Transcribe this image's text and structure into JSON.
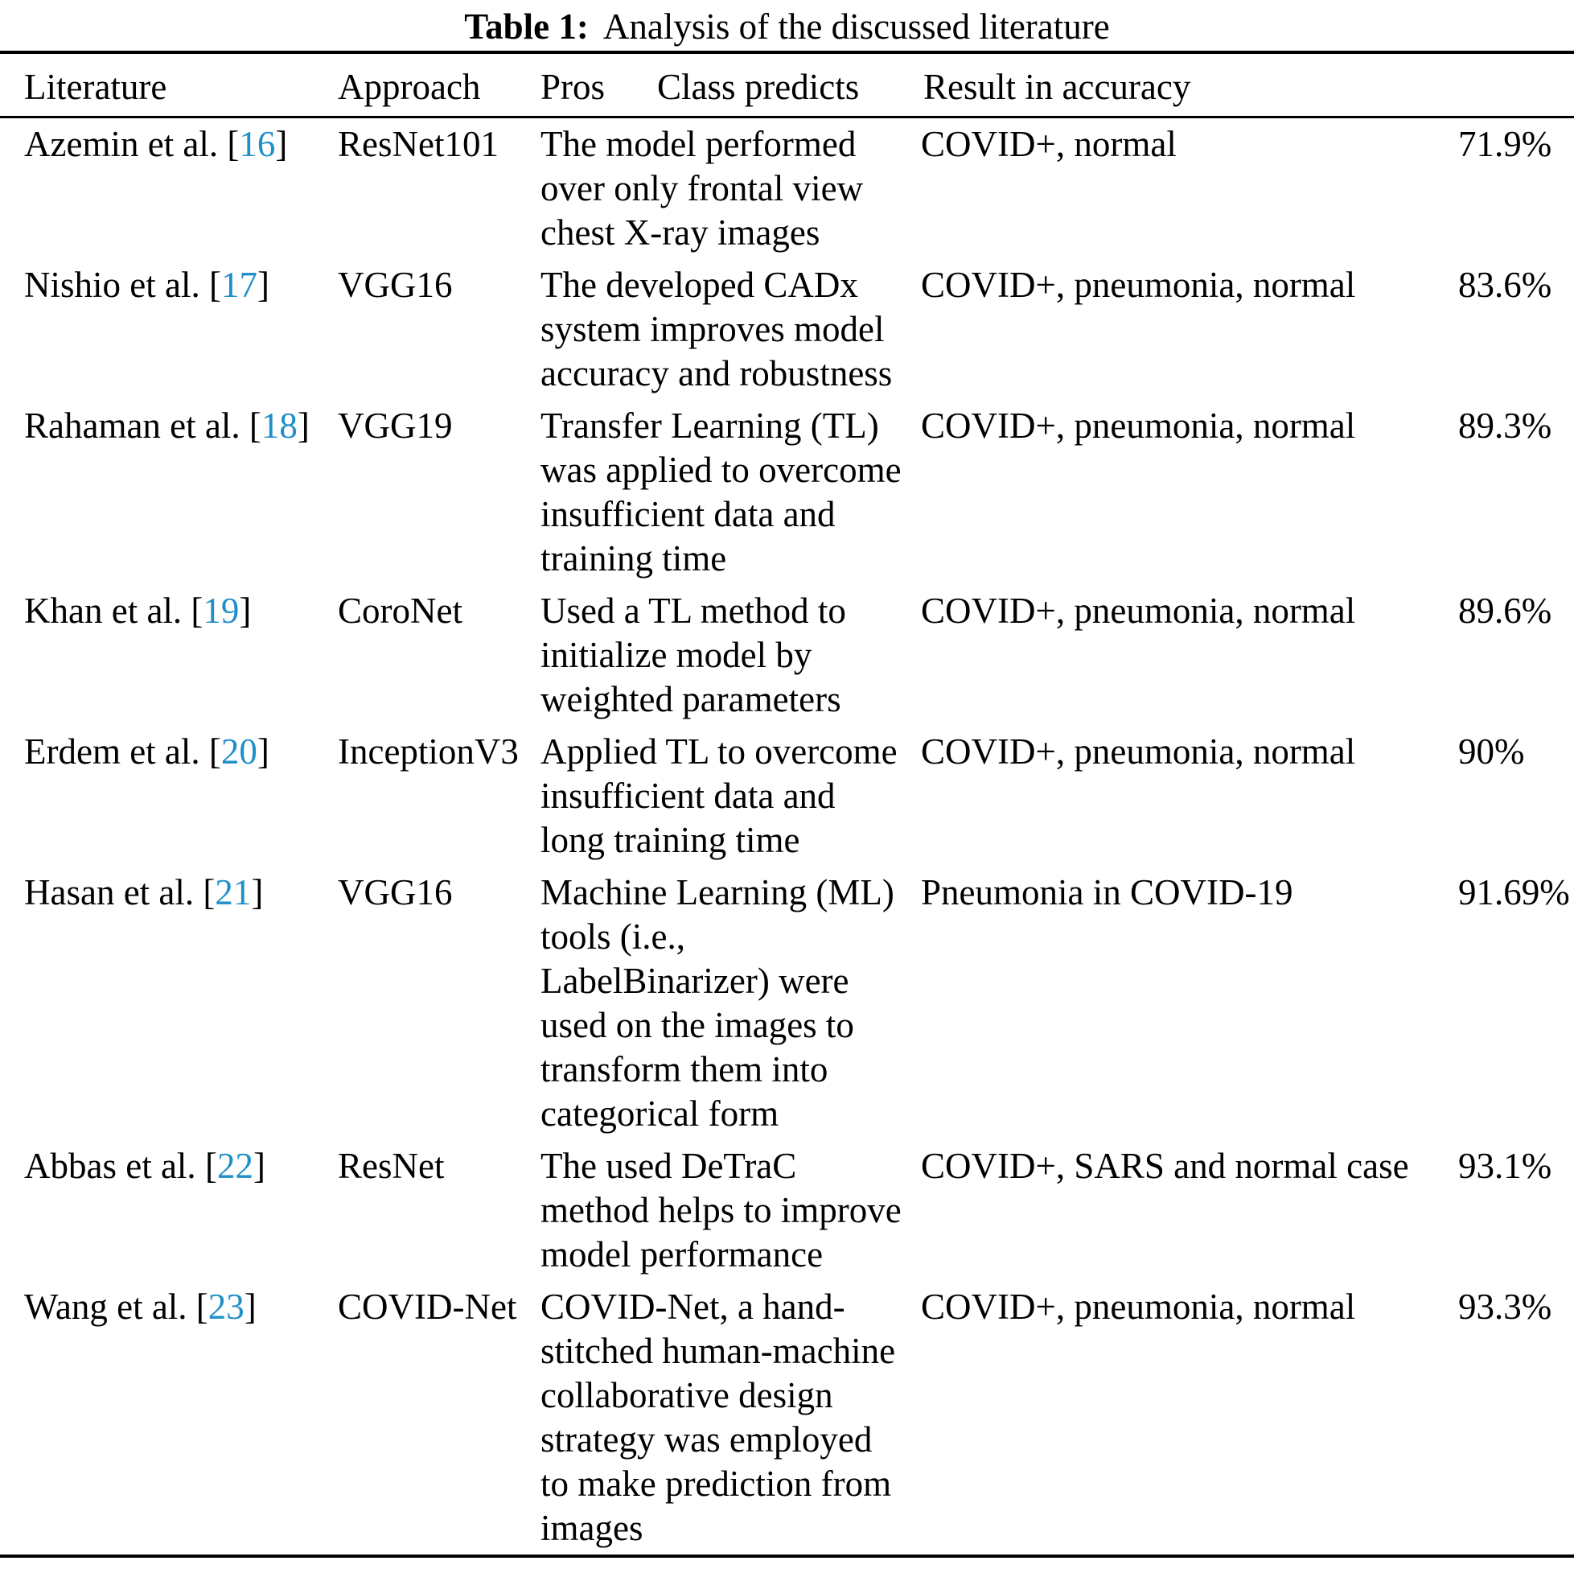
{
  "caption": {
    "label": "Table 1:",
    "text": "Analysis of the discussed literature"
  },
  "colors": {
    "citation_link": "#1e8fc9",
    "text": "#000000",
    "background": "#ffffff"
  },
  "citation_brackets": {
    "open": "[",
    "close": "]"
  },
  "table": {
    "columns": {
      "literature": "Literature",
      "approach": "Approach",
      "pros": "Pros",
      "class_predicts": "Class predicts",
      "result": "Result in accuracy"
    },
    "rows": [
      {
        "literature": "Azemin et al. ",
        "ref": "16",
        "approach": "ResNet101",
        "pros": "The model performed\nover only frontal view\nchest X-ray images",
        "class_predicts": "COVID+, normal",
        "accuracy": "71.9%"
      },
      {
        "literature": "Nishio et al. ",
        "ref": "17",
        "approach": "VGG16",
        "pros": "The developed CADx\nsystem improves model\naccuracy and robustness",
        "class_predicts": "COVID+, pneumonia, normal",
        "accuracy": "83.6%"
      },
      {
        "literature": "Rahaman et al. ",
        "ref": "18",
        "approach": "VGG19",
        "pros": "Transfer Learning (TL)\nwas applied to overcome\ninsufficient data and\ntraining time",
        "class_predicts": "COVID+, pneumonia, normal",
        "accuracy": "89.3%"
      },
      {
        "literature": "Khan et al. ",
        "ref": "19",
        "approach": "CoroNet",
        "pros": "Used a TL method to\ninitialize model by\nweighted parameters",
        "class_predicts": "COVID+, pneumonia, normal",
        "accuracy": "89.6%"
      },
      {
        "literature": "Erdem et al. ",
        "ref": "20",
        "approach": "InceptionV3",
        "pros": "Applied TL to overcome\ninsufficient data and\nlong training time",
        "class_predicts": "COVID+, pneumonia, normal",
        "accuracy": "90%"
      },
      {
        "literature": "Hasan et al. ",
        "ref": "21",
        "approach": "VGG16",
        "pros": "Machine Learning (ML)\ntools (i.e.,\nLabelBinarizer) were\nused on the images to\ntransform them into\ncategorical form",
        "class_predicts": "Pneumonia in COVID-19",
        "accuracy": "91.69%"
      },
      {
        "literature": "Abbas et al. ",
        "ref": "22",
        "approach": "ResNet",
        "pros": "The used DeTraC\nmethod helps to improve\nmodel performance",
        "class_predicts": "COVID+, SARS and normal case",
        "accuracy": "93.1%"
      },
      {
        "literature": "Wang et al. ",
        "ref": "23",
        "approach": "COVID-Net",
        "pros": "COVID-Net, a hand-\nstitched human-machine\ncollaborative design\nstrategy was employed\nto make prediction from\nimages",
        "class_predicts": "COVID+, pneumonia, normal",
        "accuracy": "93.3%"
      }
    ]
  }
}
